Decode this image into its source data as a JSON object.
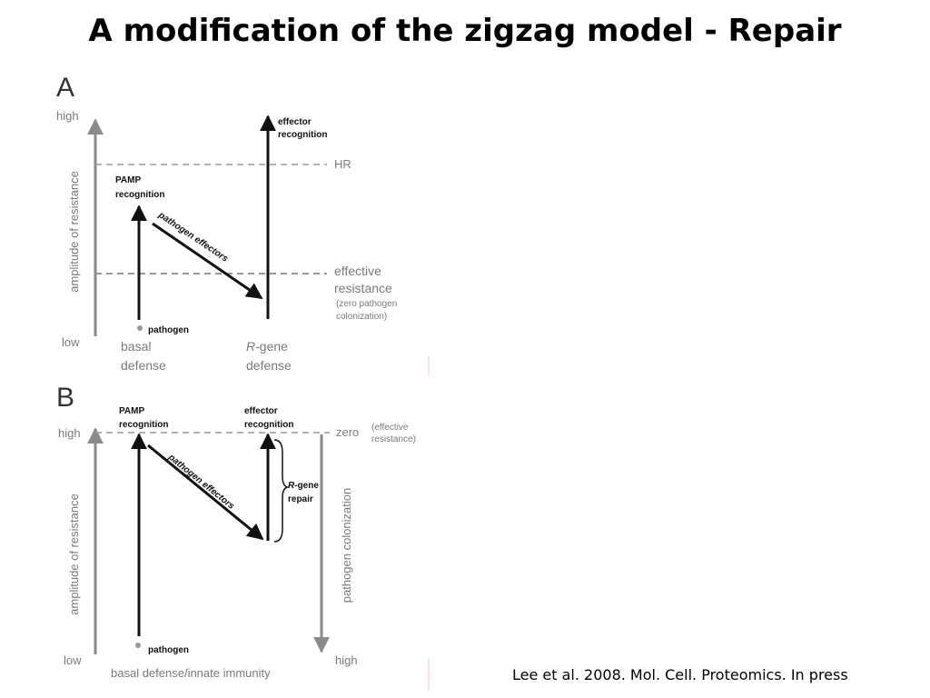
{
  "slide": {
    "title": "A modification of the zigzag model - Repair",
    "citation": "Lee et al. 2008. Mol. Cell. Proteomics. In press"
  },
  "panel_a": {
    "letter": "A",
    "y_high": "high",
    "y_low": "low",
    "y_axis": "amplitude of resistance",
    "pamp_1": "PAMP",
    "pamp_2": "recognition",
    "effector_1": "effector",
    "effector_2": "recognition",
    "hr": "HR",
    "diag": "pathogen effectors",
    "eff_res_1": "effective",
    "eff_res_2": "resistance",
    "zero_1": "(zero pathogen",
    "zero_2": "colonization)",
    "pathogen": "pathogen",
    "basal_1": "basal",
    "basal_2": "defense",
    "rgene_prefix": "R",
    "rgene_1": "-gene",
    "rgene_2": "defense"
  },
  "panel_b": {
    "letter": "B",
    "y_high": "high",
    "y_low": "low",
    "y_axis": "amplitude of resistance",
    "pamp_1": "PAMP",
    "pamp_2": "recognition",
    "effector_1": "effector",
    "effector_2": "recognition",
    "zero": "zero",
    "eff_1": "(effective",
    "eff_2": "resistance)",
    "diag": "pathogen effectors",
    "repair_prefix": "R",
    "repair_1": "-gene",
    "repair_2": "repair",
    "right_axis": "pathogen colonization",
    "right_high": "high",
    "pathogen": "pathogen",
    "x_label": "basal defense/innate immunity"
  }
}
